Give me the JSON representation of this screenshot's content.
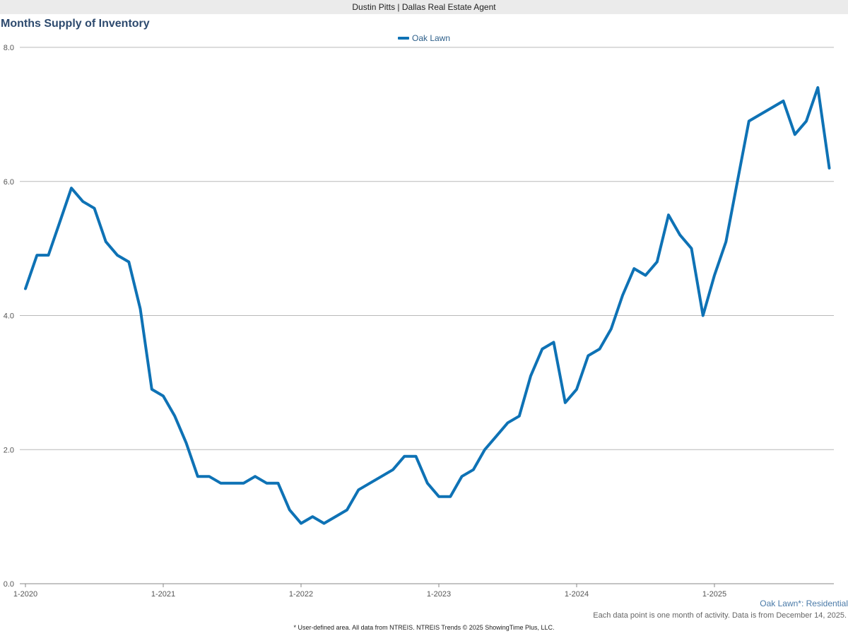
{
  "header": {
    "agent_label": "Dustin Pitts | Dallas Real Estate Agent"
  },
  "colors": {
    "series": "#0e72b5",
    "grid": "#b9b9b9",
    "axis": "#888888"
  },
  "chart_data": {
    "type": "line",
    "title": "Months Supply of Inventory",
    "xlabel": "",
    "ylabel": "",
    "ylim": [
      0,
      8
    ],
    "yticks": [
      "0.0",
      "2.0",
      "4.0",
      "6.0",
      "8.0"
    ],
    "xticks": [
      "1-2020",
      "1-2021",
      "1-2022",
      "1-2023",
      "1-2024",
      "1-2025"
    ],
    "grid": true,
    "legend_position": "top-center",
    "series": [
      {
        "name": "Oak Lawn",
        "x": [
          "2020-01",
          "2020-02",
          "2020-03",
          "2020-04",
          "2020-05",
          "2020-06",
          "2020-07",
          "2020-08",
          "2020-09",
          "2020-10",
          "2020-11",
          "2020-12",
          "2021-01",
          "2021-02",
          "2021-03",
          "2021-04",
          "2021-05",
          "2021-06",
          "2021-07",
          "2021-08",
          "2021-09",
          "2021-10",
          "2021-11",
          "2021-12",
          "2022-01",
          "2022-02",
          "2022-03",
          "2022-04",
          "2022-05",
          "2022-06",
          "2022-07",
          "2022-08",
          "2022-09",
          "2022-10",
          "2022-11",
          "2022-12",
          "2023-01",
          "2023-02",
          "2023-03",
          "2023-04",
          "2023-05",
          "2023-06",
          "2023-07",
          "2023-08",
          "2023-09",
          "2023-10",
          "2023-11",
          "2023-12",
          "2024-01",
          "2024-02",
          "2024-03",
          "2024-04",
          "2024-05",
          "2024-06",
          "2024-07",
          "2024-08",
          "2024-09",
          "2024-10",
          "2024-11",
          "2024-12",
          "2025-01",
          "2025-02",
          "2025-03",
          "2025-04",
          "2025-05",
          "2025-06",
          "2025-07",
          "2025-08",
          "2025-09",
          "2025-10",
          "2025-11"
        ],
        "values": [
          4.4,
          4.9,
          4.9,
          5.4,
          5.9,
          5.7,
          5.6,
          5.1,
          4.9,
          4.8,
          4.1,
          2.9,
          2.8,
          2.5,
          2.1,
          1.6,
          1.6,
          1.5,
          1.5,
          1.5,
          1.6,
          1.5,
          1.5,
          1.1,
          0.9,
          1.0,
          0.9,
          1.0,
          1.1,
          1.4,
          1.5,
          1.6,
          1.7,
          1.9,
          1.9,
          1.5,
          1.3,
          1.3,
          1.6,
          1.7,
          2.0,
          2.2,
          2.4,
          2.5,
          3.1,
          3.5,
          3.6,
          2.7,
          2.9,
          3.4,
          3.5,
          3.8,
          4.3,
          4.7,
          4.6,
          4.8,
          5.5,
          5.2,
          5.0,
          4.0,
          4.6,
          5.1,
          6.0,
          6.9,
          7.0,
          7.1,
          7.2,
          6.7,
          6.9,
          7.4,
          6.2
        ]
      }
    ]
  },
  "footer": {
    "series_label": "Oak Lawn*: Residential",
    "note": "Each data point is one month of activity. Data is from December 14, 2025.",
    "source": "* User-defined area. All data from NTREIS. NTREIS Trends © 2025 ShowingTime Plus, LLC."
  }
}
